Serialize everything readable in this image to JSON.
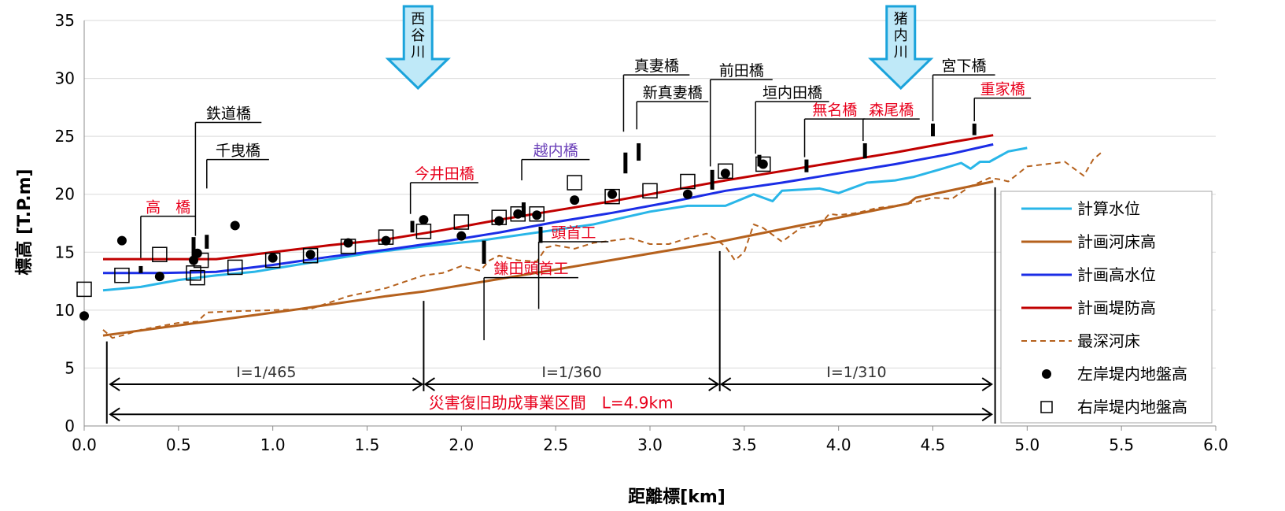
{
  "chart_data": {
    "type": "line",
    "xlabel": "距離標[km]",
    "ylabel": "標高 [T.P.m]",
    "xlim": [
      0,
      6.0
    ],
    "ylim": [
      0,
      35
    ],
    "xticks": [
      0,
      0.5,
      1.0,
      1.5,
      2.0,
      2.5,
      3.0,
      3.5,
      4.0,
      4.5,
      5.0,
      5.5,
      6.0
    ],
    "xtick_labels": [
      "0.0",
      "0.5",
      "1.0",
      "1.5",
      "2.0",
      "2.5",
      "3.0",
      "3.5",
      "4.0",
      "4.5",
      "5.0",
      "5.5",
      "6.0"
    ],
    "yticks": [
      0,
      5,
      10,
      15,
      20,
      25,
      30,
      35
    ],
    "ytick_labels": [
      "0",
      "5",
      "10",
      "15",
      "20",
      "25",
      "30",
      "35"
    ],
    "grid": "horizontal",
    "legend_position": "right",
    "series": [
      {
        "name": "計算水位",
        "style": "line",
        "color": "#29b6e8",
        "points": [
          [
            0.1,
            11.7
          ],
          [
            0.3,
            12.0
          ],
          [
            0.5,
            12.6
          ],
          [
            0.7,
            13.0
          ],
          [
            0.9,
            13.3
          ],
          [
            1.2,
            14.1
          ],
          [
            1.5,
            14.9
          ],
          [
            1.8,
            15.5
          ],
          [
            2.1,
            16.0
          ],
          [
            2.4,
            16.7
          ],
          [
            2.7,
            17.4
          ],
          [
            3.0,
            18.5
          ],
          [
            3.2,
            19.0
          ],
          [
            3.4,
            19.0
          ],
          [
            3.55,
            20.0
          ],
          [
            3.65,
            19.4
          ],
          [
            3.7,
            20.3
          ],
          [
            3.9,
            20.5
          ],
          [
            4.0,
            20.1
          ],
          [
            4.15,
            21.0
          ],
          [
            4.3,
            21.2
          ],
          [
            4.4,
            21.5
          ],
          [
            4.55,
            22.2
          ],
          [
            4.65,
            22.7
          ],
          [
            4.7,
            22.2
          ],
          [
            4.75,
            22.8
          ],
          [
            4.8,
            22.8
          ],
          [
            4.9,
            23.7
          ],
          [
            5.0,
            24.0
          ]
        ]
      },
      {
        "name": "計画河床高",
        "style": "line",
        "color": "#b5611d",
        "points": [
          [
            0.1,
            7.8
          ],
          [
            0.6,
            8.9
          ],
          [
            1.1,
            10.0
          ],
          [
            1.6,
            11.2
          ],
          [
            1.8,
            11.6
          ],
          [
            2.5,
            13.5
          ],
          [
            3.37,
            15.9
          ],
          [
            4.37,
            19.2
          ],
          [
            4.41,
            19.7
          ],
          [
            4.82,
            21.1
          ]
        ]
      },
      {
        "name": "計画高水位",
        "style": "line",
        "color": "#1b2de6",
        "points": [
          [
            0.1,
            13.2
          ],
          [
            0.4,
            13.2
          ],
          [
            0.7,
            13.3
          ],
          [
            1.0,
            13.9
          ],
          [
            1.3,
            14.6
          ],
          [
            1.6,
            15.2
          ],
          [
            1.9,
            15.9
          ],
          [
            2.2,
            16.7
          ],
          [
            2.5,
            17.6
          ],
          [
            2.8,
            18.4
          ],
          [
            3.1,
            19.3
          ],
          [
            3.4,
            20.3
          ],
          [
            3.7,
            21.0
          ],
          [
            4.0,
            21.8
          ],
          [
            4.3,
            22.6
          ],
          [
            4.6,
            23.5
          ],
          [
            4.82,
            24.3
          ]
        ]
      },
      {
        "name": "計画堤防高",
        "style": "line",
        "color": "#c00000",
        "points": [
          [
            0.1,
            14.4
          ],
          [
            0.4,
            14.4
          ],
          [
            0.7,
            14.4
          ],
          [
            1.0,
            15.0
          ],
          [
            1.3,
            15.6
          ],
          [
            1.6,
            16.1
          ],
          [
            1.9,
            16.9
          ],
          [
            2.2,
            17.8
          ],
          [
            2.5,
            18.6
          ],
          [
            2.8,
            19.4
          ],
          [
            3.1,
            20.3
          ],
          [
            3.4,
            21.2
          ],
          [
            3.7,
            22.0
          ],
          [
            4.0,
            22.8
          ],
          [
            4.3,
            23.6
          ],
          [
            4.6,
            24.5
          ],
          [
            4.82,
            25.1
          ]
        ]
      },
      {
        "name": "最深河床",
        "style": "dashed",
        "color": "#b5611d",
        "points": [
          [
            0.1,
            8.3
          ],
          [
            0.15,
            7.6
          ],
          [
            0.2,
            7.8
          ],
          [
            0.3,
            8.3
          ],
          [
            0.5,
            8.9
          ],
          [
            0.6,
            9.0
          ],
          [
            0.65,
            9.8
          ],
          [
            0.8,
            9.9
          ],
          [
            1.0,
            10.0
          ],
          [
            1.2,
            10.1
          ],
          [
            1.4,
            11.2
          ],
          [
            1.6,
            11.9
          ],
          [
            1.8,
            13.0
          ],
          [
            1.9,
            13.2
          ],
          [
            2.0,
            13.8
          ],
          [
            2.1,
            13.4
          ],
          [
            2.15,
            14.3
          ],
          [
            2.2,
            14.7
          ],
          [
            2.3,
            14.3
          ],
          [
            2.4,
            14.2
          ],
          [
            2.45,
            15.4
          ],
          [
            2.5,
            15.6
          ],
          [
            2.6,
            15.3
          ],
          [
            2.7,
            15.8
          ],
          [
            2.8,
            16.0
          ],
          [
            2.9,
            16.2
          ],
          [
            3.0,
            15.7
          ],
          [
            3.1,
            15.7
          ],
          [
            3.2,
            16.2
          ],
          [
            3.3,
            16.6
          ],
          [
            3.35,
            16.1
          ],
          [
            3.4,
            15.5
          ],
          [
            3.45,
            14.3
          ],
          [
            3.5,
            15.0
          ],
          [
            3.55,
            17.4
          ],
          [
            3.6,
            17.1
          ],
          [
            3.7,
            15.9
          ],
          [
            3.8,
            17.1
          ],
          [
            3.9,
            17.3
          ],
          [
            3.95,
            18.3
          ],
          [
            4.0,
            18.2
          ],
          [
            4.1,
            18.4
          ],
          [
            4.2,
            18.8
          ],
          [
            4.3,
            19.0
          ],
          [
            4.4,
            19.3
          ],
          [
            4.5,
            19.7
          ],
          [
            4.6,
            19.6
          ],
          [
            4.7,
            20.7
          ],
          [
            4.8,
            21.4
          ],
          [
            4.85,
            21.3
          ],
          [
            4.9,
            21.1
          ],
          [
            5.0,
            22.4
          ],
          [
            5.1,
            22.6
          ],
          [
            5.2,
            22.8
          ],
          [
            5.3,
            21.6
          ],
          [
            5.35,
            23.0
          ],
          [
            5.4,
            23.7
          ]
        ]
      },
      {
        "name": "左岸堤内地盤高",
        "style": "filled-circle",
        "color": "#000000",
        "points": [
          [
            0.0,
            9.5
          ],
          [
            0.2,
            16.0
          ],
          [
            0.4,
            12.9
          ],
          [
            0.58,
            14.3
          ],
          [
            0.6,
            14.9
          ],
          [
            0.8,
            17.3
          ],
          [
            1.0,
            14.5
          ],
          [
            1.2,
            14.8
          ],
          [
            1.4,
            15.8
          ],
          [
            1.6,
            16.0
          ],
          [
            1.8,
            17.8
          ],
          [
            2.0,
            16.4
          ],
          [
            2.2,
            17.7
          ],
          [
            2.3,
            18.3
          ],
          [
            2.4,
            18.2
          ],
          [
            2.6,
            19.5
          ],
          [
            2.8,
            20.0
          ],
          [
            3.2,
            20.0
          ],
          [
            3.4,
            21.8
          ],
          [
            3.6,
            22.6
          ]
        ]
      },
      {
        "name": "右岸堤内地盤高",
        "style": "open-square",
        "color": "#000000",
        "points": [
          [
            0.0,
            11.8
          ],
          [
            0.2,
            13.0
          ],
          [
            0.4,
            14.8
          ],
          [
            0.58,
            13.2
          ],
          [
            0.6,
            12.8
          ],
          [
            0.62,
            14.3
          ],
          [
            0.8,
            13.7
          ],
          [
            1.0,
            14.3
          ],
          [
            1.2,
            14.7
          ],
          [
            1.4,
            15.5
          ],
          [
            1.6,
            16.3
          ],
          [
            1.8,
            16.8
          ],
          [
            2.0,
            17.6
          ],
          [
            2.2,
            18.0
          ],
          [
            2.3,
            18.3
          ],
          [
            2.4,
            18.3
          ],
          [
            2.6,
            21.0
          ],
          [
            2.8,
            19.8
          ],
          [
            3.0,
            20.3
          ],
          [
            3.2,
            21.1
          ],
          [
            3.4,
            22.0
          ],
          [
            3.6,
            22.6
          ]
        ]
      }
    ],
    "bridge_markers": [
      {
        "x": 0.3,
        "y1": 13.2,
        "y2": 13.8
      },
      {
        "x": 0.58,
        "y1": 14.6,
        "y2": 16.3
      },
      {
        "x": 0.65,
        "y1": 15.3,
        "y2": 16.5
      },
      {
        "x": 1.74,
        "y1": 16.7,
        "y2": 17.7
      },
      {
        "x": 2.12,
        "y1": 14.0,
        "y2": 16.0
      },
      {
        "x": 2.33,
        "y1": 18.0,
        "y2": 19.3
      },
      {
        "x": 2.42,
        "y1": 15.8,
        "y2": 17.2
      },
      {
        "x": 2.87,
        "y1": 21.8,
        "y2": 23.6
      },
      {
        "x": 2.94,
        "y1": 22.9,
        "y2": 24.4
      },
      {
        "x": 3.33,
        "y1": 20.4,
        "y2": 22.1
      },
      {
        "x": 3.58,
        "y1": 22.4,
        "y2": 23.4
      },
      {
        "x": 3.83,
        "y1": 21.9,
        "y2": 23.0
      },
      {
        "x": 4.14,
        "y1": 23.1,
        "y2": 24.4
      },
      {
        "x": 4.5,
        "y1": 25.0,
        "y2": 26.1
      },
      {
        "x": 4.72,
        "y1": 25.1,
        "y2": 26.1
      }
    ],
    "annotations": [
      {
        "label": "高　橋",
        "color": "#e8001c",
        "x": 0.3,
        "tick_top": 18.1,
        "tick_bottom": 14.5,
        "line_x1": 0.3,
        "line_x2": 0.59
      },
      {
        "label": "鉄道橋",
        "color": "#000000",
        "x": 0.59,
        "tick_top": 26.2,
        "tick_bottom": 16.4,
        "line_x1": 0.59,
        "line_x2": 0.94
      },
      {
        "label": "千曳橋",
        "color": "#000000",
        "x": 0.65,
        "tick_top": 23.0,
        "tick_bottom": 20.5,
        "line_x1": 0.65,
        "line_x2": 0.98
      },
      {
        "label": "今井田橋",
        "color": "#e8001c",
        "x": 1.73,
        "tick_top": 21.0,
        "tick_bottom": 18.3,
        "line_x1": 1.73,
        "line_x2": 2.09
      },
      {
        "label": "越内橋",
        "color": "#6a3fb8",
        "x": 2.32,
        "tick_top": 23.0,
        "tick_bottom": 21.2,
        "line_x1": 2.32,
        "line_x2": 2.68
      },
      {
        "label": "真妻橋",
        "color": "#000000",
        "x": 2.86,
        "tick_top": 30.3,
        "tick_bottom": 25.4,
        "line_x1": 2.86,
        "line_x2": 3.21
      },
      {
        "label": "新真妻橋",
        "color": "#000000",
        "x": 2.93,
        "tick_top": 28.0,
        "tick_bottom": 25.6,
        "line_x1": 2.93,
        "line_x2": 3.31
      },
      {
        "label": "前田橋",
        "color": "#000000",
        "x": 3.32,
        "tick_top": 29.9,
        "tick_bottom": 22.4,
        "line_x1": 3.32,
        "line_x2": 3.65
      },
      {
        "label": "垣内田橋",
        "color": "#000000",
        "x": 3.56,
        "tick_top": 28.0,
        "tick_bottom": 23.5,
        "line_x1": 3.56,
        "line_x2": 3.95
      },
      {
        "label": "無名橋",
        "color": "#e8001c",
        "x": 3.82,
        "tick_top": 26.5,
        "tick_bottom": 23.2,
        "line_x1": 3.82,
        "line_x2": 4.14
      },
      {
        "label": "森尾橋",
        "color": "#e8001c",
        "x": 4.13,
        "tick_top": 26.5,
        "tick_bottom": 24.6,
        "line_x1": 4.13,
        "line_x2": 4.43
      },
      {
        "label": "宮下橋",
        "color": "#000000",
        "x": 4.5,
        "tick_top": 30.3,
        "tick_bottom": 26.3,
        "line_x1": 4.5,
        "line_x2": 4.83
      },
      {
        "label": "重家橋",
        "color": "#e8001c",
        "x": 4.72,
        "tick_top": 28.3,
        "tick_bottom": 26.3,
        "line_x1": 4.72,
        "line_x2": 5.02
      },
      {
        "label": "頭首工",
        "color": "#e8001c",
        "x": 2.41,
        "tick_top": 15.9,
        "tick_bottom": 10.1,
        "line_x1": 2.41,
        "line_x2": 2.78
      },
      {
        "label": "鎌田頭首工",
        "color": "#e8001c",
        "x": 2.12,
        "tick_top": 12.8,
        "tick_bottom": 7.4,
        "line_x1": 2.12,
        "line_x2": 2.62
      }
    ],
    "tributaries": [
      {
        "label": "西谷川",
        "x": 1.77
      },
      {
        "label": "猪内川",
        "x": 4.33
      }
    ],
    "gradient_sections": [
      {
        "label": "I=1/465",
        "x1": 0.13,
        "x2": 1.8,
        "y": 3.6
      },
      {
        "label": "I=1/360",
        "x1": 1.8,
        "x2": 3.37,
        "y": 3.6
      },
      {
        "label": "I=1/310",
        "x1": 3.37,
        "x2": 4.82,
        "y": 3.6
      }
    ],
    "total_section": {
      "label": "災害復旧助成事業区間　L=4.9km",
      "x1": 0.13,
      "x2": 4.82,
      "y": 1.0
    },
    "section_boundaries": [
      {
        "x": 0.12,
        "y_top": 7.3,
        "y_bottom": 0.2
      },
      {
        "x": 1.8,
        "y_top": 10.8,
        "y_bottom": 3.0
      },
      {
        "x": 3.37,
        "y_top": 15.1,
        "y_bottom": 3.0
      },
      {
        "x": 4.83,
        "y_top": 20.6,
        "y_bottom": 0.2
      }
    ]
  }
}
